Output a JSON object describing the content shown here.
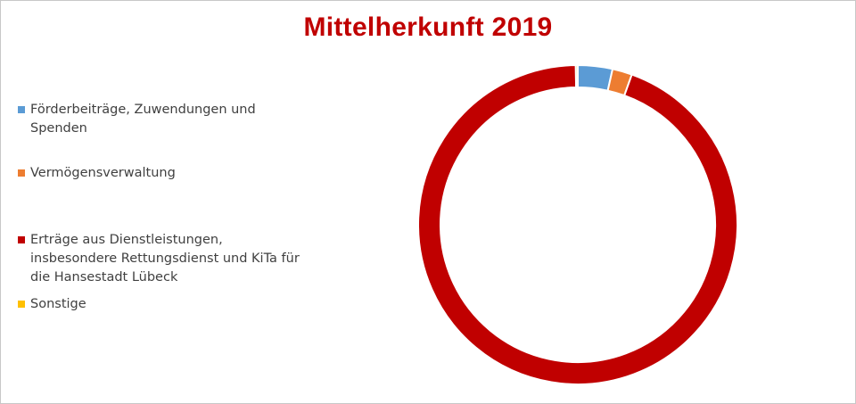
{
  "chart_data": {
    "type": "pie",
    "variant": "donut",
    "title": "Mittelherkunft 2019",
    "title_color": "#c00000",
    "legend_position": "left",
    "categories": [
      "Förderbeiträge, Zuwendungen und Spenden",
      "Vermögensverwaltung",
      "Erträge aus Dienstleistungen, insbesondere Rettungsdienst und KiTa für die Hansestadt Lübeck",
      "Sonstige"
    ],
    "values": [
      3.5,
      2.0,
      94.3,
      0.2
    ],
    "colors": [
      "#5b9bd5",
      "#ed7d31",
      "#c00000",
      "#ffc000"
    ]
  }
}
